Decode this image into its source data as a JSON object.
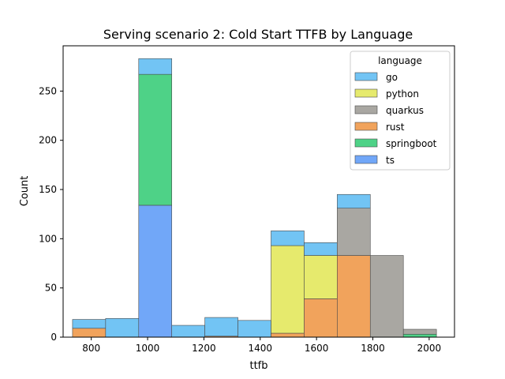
{
  "chart_data": {
    "type": "bar",
    "title": "Serving scenario 2: Cold Start TTFB by Language",
    "xlabel": "ttfb",
    "ylabel": "Count",
    "xlim": [
      700,
      2090
    ],
    "ylim": [
      0,
      296
    ],
    "xticks": [
      800,
      1000,
      1200,
      1400,
      1600,
      1800,
      2000
    ],
    "yticks": [
      0,
      50,
      100,
      150,
      200,
      250
    ],
    "grid": false,
    "legend": {
      "title": "language",
      "placement": "top-right"
    },
    "bin_edges": [
      733.4,
      850.9,
      968.4,
      1085.9,
      1203.4,
      1320.9,
      1438.4,
      1555.9,
      1673.4,
      1790.9,
      1908.4,
      2025.9
    ],
    "stack_order": [
      "ts",
      "springboot",
      "rust",
      "quarkus",
      "python",
      "go"
    ],
    "series": [
      {
        "name": "go",
        "color": "#72c4f4",
        "values": [
          9,
          19,
          16,
          12,
          19,
          17,
          15,
          13,
          14,
          0,
          0
        ]
      },
      {
        "name": "python",
        "color": "#e6ea6d",
        "values": [
          0,
          0,
          0,
          0,
          0,
          0,
          89,
          44,
          0,
          0,
          0
        ]
      },
      {
        "name": "quarkus",
        "color": "#a9a7a2",
        "values": [
          0,
          0,
          0,
          0,
          0,
          0,
          0,
          0,
          48,
          83,
          5
        ]
      },
      {
        "name": "rust",
        "color": "#f1a35c",
        "values": [
          9,
          0,
          0,
          0,
          1,
          0,
          4,
          39,
          83,
          0,
          0
        ]
      },
      {
        "name": "springboot",
        "color": "#4ed287",
        "values": [
          0,
          0,
          133,
          0,
          0,
          0,
          0,
          0,
          0,
          0,
          3
        ]
      },
      {
        "name": "ts",
        "color": "#71a7f8",
        "values": [
          0,
          0,
          134,
          0,
          0,
          0,
          0,
          0,
          0,
          0,
          0
        ]
      }
    ],
    "legend_order": [
      "go",
      "python",
      "quarkus",
      "rust",
      "springboot",
      "ts"
    ]
  }
}
